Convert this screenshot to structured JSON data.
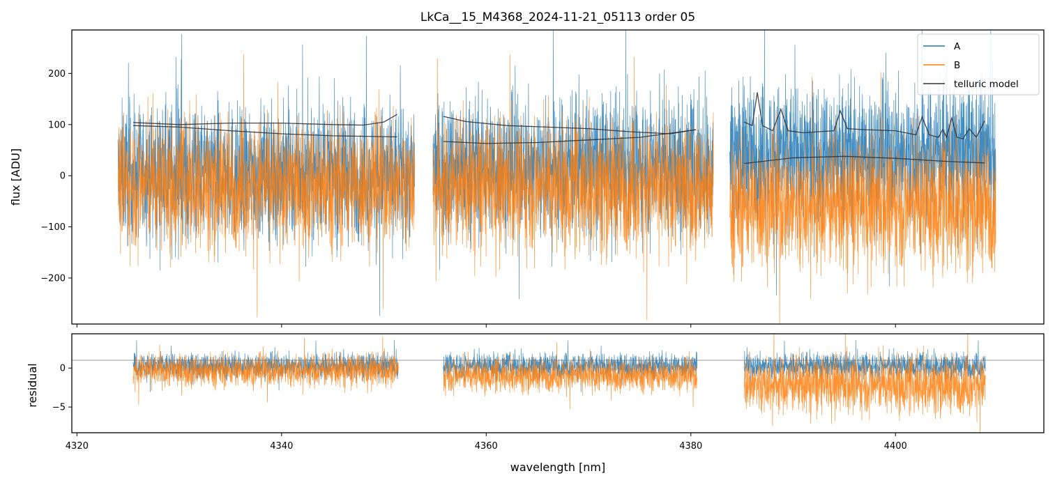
{
  "chart_data": [
    {
      "type": "line",
      "panel": "main",
      "title": "LkCa__15_M4368_2024-11-21_05113  order 05",
      "xlabel": "",
      "ylabel": "flux [ADU]",
      "xlim": [
        4319.5,
        4414.5
      ],
      "ylim": [
        -290,
        285
      ],
      "yticks": [
        -200,
        -100,
        0,
        100,
        200
      ],
      "ytick_labels": [
        "−200",
        "−100",
        "0",
        "100",
        "200"
      ],
      "xticks": [
        4320,
        4340,
        4360,
        4380,
        4400
      ],
      "segments": [
        [
          4324.0,
          4353.0
        ],
        [
          4354.8,
          4382.2
        ],
        [
          4383.8,
          4409.8
        ]
      ],
      "colors": {
        "A": "#1f77b4",
        "B": "#ff7f0e",
        "telluric": "#333333"
      },
      "series": [
        {
          "name": "A",
          "kind": "noise",
          "amplitude": 165,
          "offset": 5,
          "bias_per_segment": [
            0,
            15,
            40
          ]
        },
        {
          "name": "B",
          "kind": "noise",
          "amplitude": 155,
          "offset": -15,
          "bias_per_segment": [
            0,
            -5,
            -40
          ]
        },
        {
          "name": "telluric model",
          "kind": "lines",
          "curves": [
            {
              "x": [
                4325.5,
                4330,
                4335,
                4340,
                4345,
                4348,
                4350,
                4351.3
              ],
              "y": [
                104,
                100,
                103,
                103,
                100,
                99,
                105,
                120
              ]
            },
            {
              "x": [
                4325.5,
                4330,
                4335,
                4340,
                4345,
                4351.3
              ],
              "y": [
                98,
                95,
                88,
                82,
                78,
                76
              ]
            },
            {
              "x": [
                4355.8,
                4358,
                4362,
                4366,
                4370,
                4374,
                4378,
                4380.5
              ],
              "y": [
                116,
                106,
                98,
                95,
                92,
                86,
                82,
                90
              ]
            },
            {
              "x": [
                4355.8,
                4360,
                4365,
                4370,
                4375,
                4380.5
              ],
              "y": [
                67,
                63,
                65,
                70,
                75,
                90
              ]
            },
            {
              "x": [
                4385.2,
                4386,
                4386.5,
                4387,
                4388,
                4388.8,
                4389.5,
                4391,
                4392.5,
                4394,
                4394.6,
                4395.3,
                4397,
                4400,
                4402,
                4402.6,
                4403.3,
                4404.2,
                4404.6,
                4405,
                4405.5,
                4406,
                4406.6,
                4407.2,
                4407.9,
                4408.7
              ],
              "y": [
                105,
                98,
                163,
                98,
                88,
                130,
                88,
                84,
                86,
                88,
                127,
                92,
                90,
                88,
                80,
                115,
                80,
                75,
                90,
                75,
                113,
                75,
                72,
                92,
                75,
                107
              ]
            },
            {
              "x": [
                4385.2,
                4390,
                4395,
                4400,
                4405,
                4408.7
              ],
              "y": [
                24,
                35,
                38,
                34,
                28,
                25
              ]
            }
          ]
        }
      ],
      "legend": {
        "position": "top-right",
        "entries": [
          "A",
          "B",
          "telluric model"
        ]
      }
    },
    {
      "type": "line",
      "panel": "residual",
      "title": "",
      "xlabel": "wavelength [nm]",
      "ylabel": "residual",
      "xlim": [
        4319.5,
        4414.5
      ],
      "ylim": [
        -8.3,
        4.4
      ],
      "yticks": [
        -5,
        0
      ],
      "ytick_labels": [
        "−5",
        "0"
      ],
      "xticks": [
        4320,
        4340,
        4360,
        4380,
        4400
      ],
      "xtick_labels": [
        "4320",
        "4340",
        "4360",
        "4380",
        "4400"
      ],
      "reference_line": 1,
      "segments": [
        [
          4325.5,
          4351.4
        ],
        [
          4355.8,
          4380.6
        ],
        [
          4385.2,
          4408.8
        ]
      ],
      "series": [
        {
          "name": "A",
          "kind": "noise",
          "amplitude": 2.0,
          "offset": 0.3,
          "bias_per_segment": [
            0,
            0,
            0
          ]
        },
        {
          "name": "B",
          "kind": "noise",
          "amplitude": 2.6,
          "offset": -0.3,
          "bias_per_segment": [
            0,
            -0.6,
            -1.8
          ]
        }
      ]
    }
  ]
}
